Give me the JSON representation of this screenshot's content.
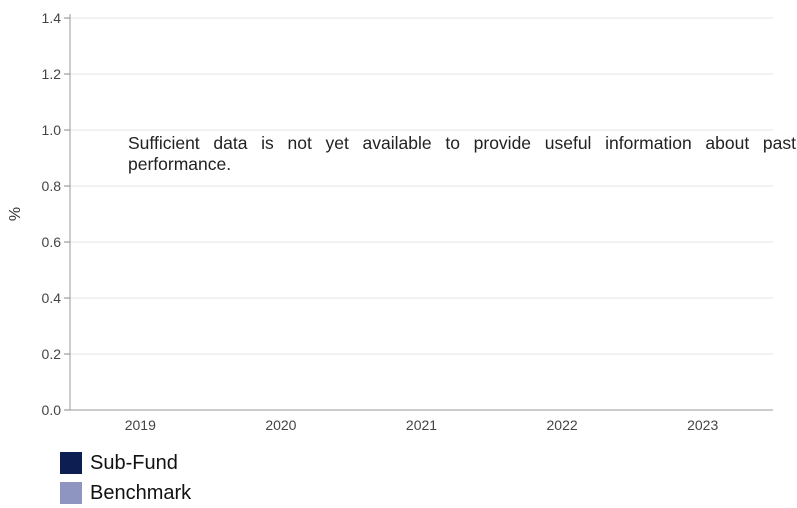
{
  "chart_data": {
    "type": "bar",
    "categories": [
      "2019",
      "2020",
      "2021",
      "2022",
      "2023"
    ],
    "series": [
      {
        "name": "Sub-Fund",
        "color": "#0d1f52",
        "values": [
          null,
          null,
          null,
          null,
          null
        ]
      },
      {
        "name": "Benchmark",
        "color": "#8f95c1",
        "values": [
          null,
          null,
          null,
          null,
          null
        ]
      }
    ],
    "ylabel": "%",
    "xlabel": "",
    "ylim": [
      0,
      1.4
    ],
    "yticks": [
      "0.0",
      "0.2",
      "0.4",
      "0.6",
      "0.8",
      "1.0",
      "1.2",
      "1.4"
    ],
    "grid": true,
    "legend_position": "bottom-left",
    "annotation": "Sufficient data is not yet available to provide useful information about past performance."
  }
}
